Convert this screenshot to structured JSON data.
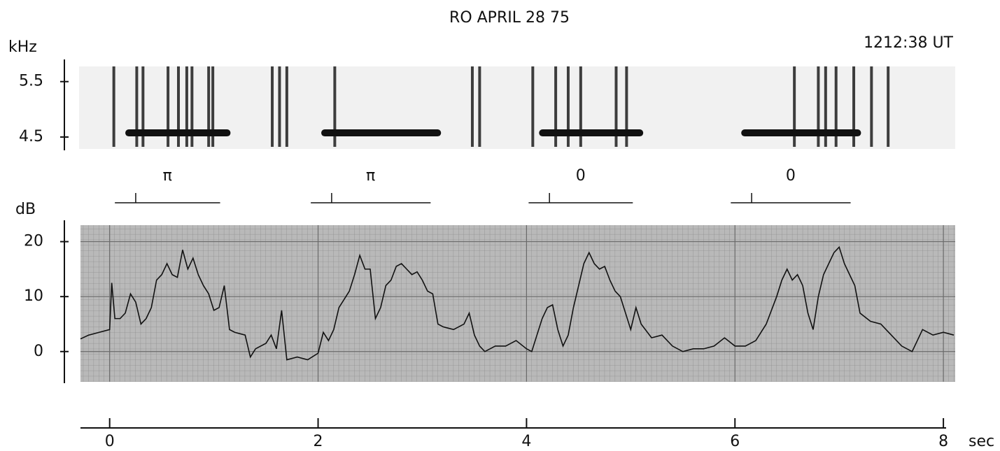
{
  "chart_data": [
    {
      "type": "spectrogram",
      "title": "RO APRIL 28 75",
      "subtitle": "1212:38 UT",
      "y_label": "kHz",
      "ylim": [
        4.26,
        5.9
      ],
      "yticks": [
        4.5,
        5.5
      ],
      "xlim": [
        -0.28,
        8.1
      ],
      "impulses": [
        0.04,
        0.26,
        0.32,
        0.56,
        0.66,
        0.74,
        0.79,
        0.95,
        0.99,
        1.56,
        1.63,
        1.7,
        2.16,
        3.48,
        3.55,
        4.06,
        4.28,
        4.4,
        4.52,
        4.86,
        4.96,
        6.57,
        6.8,
        6.87,
        6.97,
        7.14,
        7.31,
        7.47
      ],
      "tone_start": [
        0.15,
        2.03,
        4.12,
        6.06
      ],
      "tone_end": [
        1.16,
        3.18,
        5.12,
        7.21
      ],
      "tone_freq": [
        4.575,
        4.575,
        4.575,
        4.575
      ],
      "phases": [
        "π",
        "π",
        "0",
        "0"
      ],
      "color": "#111111"
    },
    {
      "type": "line",
      "y_label": "dB",
      "x_label": "sec",
      "xlim": [
        -0.28,
        8.1
      ],
      "xticks": [
        0,
        2,
        4,
        6,
        8
      ],
      "ylim": [
        -5.5,
        23
      ],
      "yticks": [
        0,
        10,
        20
      ],
      "color": "#111111",
      "grid": true,
      "x": [
        -0.28,
        -0.2,
        -0.1,
        0.0,
        0.02,
        0.05,
        0.1,
        0.15,
        0.2,
        0.25,
        0.3,
        0.35,
        0.4,
        0.45,
        0.5,
        0.55,
        0.6,
        0.65,
        0.7,
        0.75,
        0.8,
        0.85,
        0.9,
        0.95,
        1.0,
        1.05,
        1.1,
        1.15,
        1.2,
        1.3,
        1.35,
        1.4,
        1.5,
        1.55,
        1.6,
        1.65,
        1.7,
        1.8,
        1.9,
        2.0,
        2.05,
        2.1,
        2.15,
        2.2,
        2.3,
        2.35,
        2.4,
        2.45,
        2.5,
        2.55,
        2.6,
        2.65,
        2.7,
        2.75,
        2.8,
        2.85,
        2.9,
        2.95,
        3.0,
        3.05,
        3.1,
        3.15,
        3.2,
        3.3,
        3.4,
        3.45,
        3.5,
        3.55,
        3.6,
        3.7,
        3.8,
        3.9,
        4.0,
        4.05,
        4.1,
        4.15,
        4.2,
        4.25,
        4.3,
        4.35,
        4.4,
        4.45,
        4.5,
        4.55,
        4.6,
        4.65,
        4.7,
        4.75,
        4.8,
        4.85,
        4.9,
        4.95,
        5.0,
        5.05,
        5.1,
        5.2,
        5.3,
        5.4,
        5.5,
        5.6,
        5.7,
        5.8,
        5.9,
        6.0,
        6.1,
        6.2,
        6.3,
        6.4,
        6.45,
        6.5,
        6.55,
        6.6,
        6.65,
        6.7,
        6.75,
        6.8,
        6.85,
        6.9,
        6.95,
        7.0,
        7.05,
        7.1,
        7.15,
        7.2,
        7.3,
        7.4,
        7.5,
        7.6,
        7.7,
        7.75,
        7.8,
        7.9,
        8.0,
        8.1
      ],
      "values": [
        2.3,
        3,
        3.5,
        4,
        12.5,
        6,
        6,
        7,
        10.5,
        9,
        5,
        6,
        8,
        13,
        14,
        16,
        14,
        13.5,
        18.5,
        15,
        17,
        14,
        12,
        10.5,
        7.5,
        8,
        12,
        4,
        3.5,
        3,
        -1,
        0.5,
        1.5,
        3,
        0.5,
        7.5,
        -1.5,
        -1,
        -1.5,
        -0.3,
        3.5,
        2,
        4,
        8,
        11,
        14,
        17.5,
        15,
        15,
        6,
        8,
        12,
        13,
        15.5,
        16,
        15,
        14,
        14.5,
        13,
        11,
        10.5,
        5,
        4.5,
        4,
        5,
        7,
        3,
        1,
        0,
        1,
        1,
        2,
        0.5,
        0,
        3,
        6,
        8,
        8.5,
        4,
        1,
        3,
        8,
        12,
        16,
        18,
        16,
        15,
        15.5,
        13,
        11,
        10,
        7,
        4,
        8,
        5,
        2.5,
        3,
        1,
        0,
        0.5,
        0.5,
        1,
        2.5,
        1,
        1,
        2,
        5,
        10,
        13,
        15,
        13,
        14,
        12,
        7,
        4,
        10,
        14,
        16,
        18,
        19,
        16,
        14,
        12,
        7,
        5.5,
        5,
        3,
        1,
        0,
        2,
        4,
        3,
        3.5,
        3
      ]
    }
  ]
}
